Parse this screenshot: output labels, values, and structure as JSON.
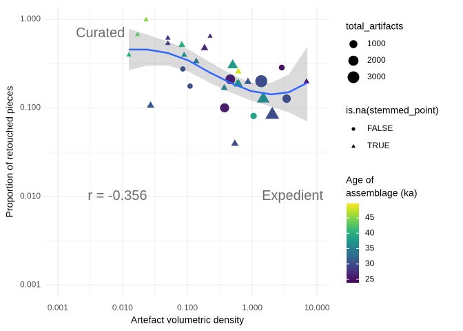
{
  "chart_data": {
    "type": "scatter",
    "x_label": "Artefact volumetric density",
    "y_label": "Proportion of retouched pieces",
    "log_x": true,
    "log_y": true,
    "grid": true,
    "xlim": [
      0.00063,
      15.5
    ],
    "ylim": [
      0.00074,
      1.38
    ],
    "xticks": [
      {
        "value": 0.001,
        "label": "0.001"
      },
      {
        "value": 0.01,
        "label": "0.010"
      },
      {
        "value": 0.1,
        "label": "0.100"
      },
      {
        "value": 1,
        "label": "1.000"
      },
      {
        "value": 10,
        "label": "10.000"
      }
    ],
    "yticks": [
      {
        "value": 0.001,
        "label": "0.001"
      },
      {
        "value": 0.01,
        "label": "0.010"
      },
      {
        "value": 0.1,
        "label": "0.100"
      },
      {
        "value": 1,
        "label": "1.000"
      }
    ],
    "series": [
      {
        "name": "FALSE",
        "shape": "circle",
        "x": [
          0.085,
          0.11,
          0.46,
          0.375,
          1.38,
          2.86,
          3.4,
          1.05
        ],
        "y": [
          0.275,
          0.176,
          0.21,
          0.1,
          0.2,
          0.285,
          0.127,
          0.081
        ],
        "size": [
          250,
          250,
          1800,
          1500,
          3200,
          350,
          1200,
          500
        ],
        "age": [
          30,
          30,
          26,
          26,
          30,
          25,
          30,
          39
        ]
      },
      {
        "name": "TRUE",
        "shape": "triangle",
        "x": [
          0.023,
          0.017,
          0.0125,
          0.05,
          0.05,
          0.224,
          0.082,
          0.184,
          0.089,
          0.137,
          0.027,
          0.5,
          0.5,
          0.61,
          0.37,
          0.58,
          0.61,
          0.86,
          1.48,
          2.04,
          0.54,
          6.9
        ],
        "y": [
          1.0,
          0.68,
          0.4,
          0.62,
          0.54,
          0.65,
          0.52,
          0.48,
          0.4,
          0.34,
          0.108,
          0.32,
          0.31,
          0.26,
          0.17,
          0.19,
          0.19,
          0.2,
          0.13,
          0.086,
          0.04,
          0.2
        ],
        "size": [
          100,
          100,
          100,
          150,
          150,
          100,
          400,
          500,
          200,
          300,
          500,
          300,
          1500,
          300,
          400,
          500,
          1000,
          500,
          2500,
          3200,
          500,
          200
        ],
        "age": [
          45,
          43,
          40,
          28,
          29,
          27,
          40,
          27,
          36,
          34,
          31,
          44,
          38,
          48,
          35,
          42,
          36,
          31,
          36,
          30,
          30,
          25
        ]
      }
    ],
    "size_legend_title": "total_artifacts",
    "size_breaks": [
      1000,
      2000,
      3000
    ],
    "shape_legend_title": "is.na(stemmed_point)",
    "color_legend_title": [
      "Age of",
      "assemblage (ka)"
    ],
    "colormap": "viridis",
    "color_lim": [
      23.9,
      49.7
    ],
    "color_ticks": [
      25,
      30,
      35,
      40,
      45
    ],
    "smooth": {
      "color": "#3366ff",
      "x": [
        0.0125,
        0.024,
        0.05,
        0.105,
        0.22,
        0.46,
        0.95,
        1.98,
        3.66,
        7.1
      ],
      "y": [
        0.455,
        0.455,
        0.416,
        0.341,
        0.251,
        0.192,
        0.155,
        0.142,
        0.15,
        0.192
      ],
      "ymin": [
        0.265,
        0.3,
        0.3,
        0.256,
        0.192,
        0.15,
        0.121,
        0.103,
        0.089,
        0.07
      ],
      "ymax": [
        0.78,
        0.67,
        0.56,
        0.455,
        0.33,
        0.243,
        0.192,
        0.192,
        0.238,
        0.49
      ]
    },
    "annotations": [
      {
        "text": "Curated",
        "x": 0.0019,
        "y": 0.69
      },
      {
        "text": "r = -0.356",
        "x": 0.0029,
        "y": 0.01
      },
      {
        "text": "Expedient",
        "x": 1.41,
        "y": 0.01
      }
    ]
  }
}
